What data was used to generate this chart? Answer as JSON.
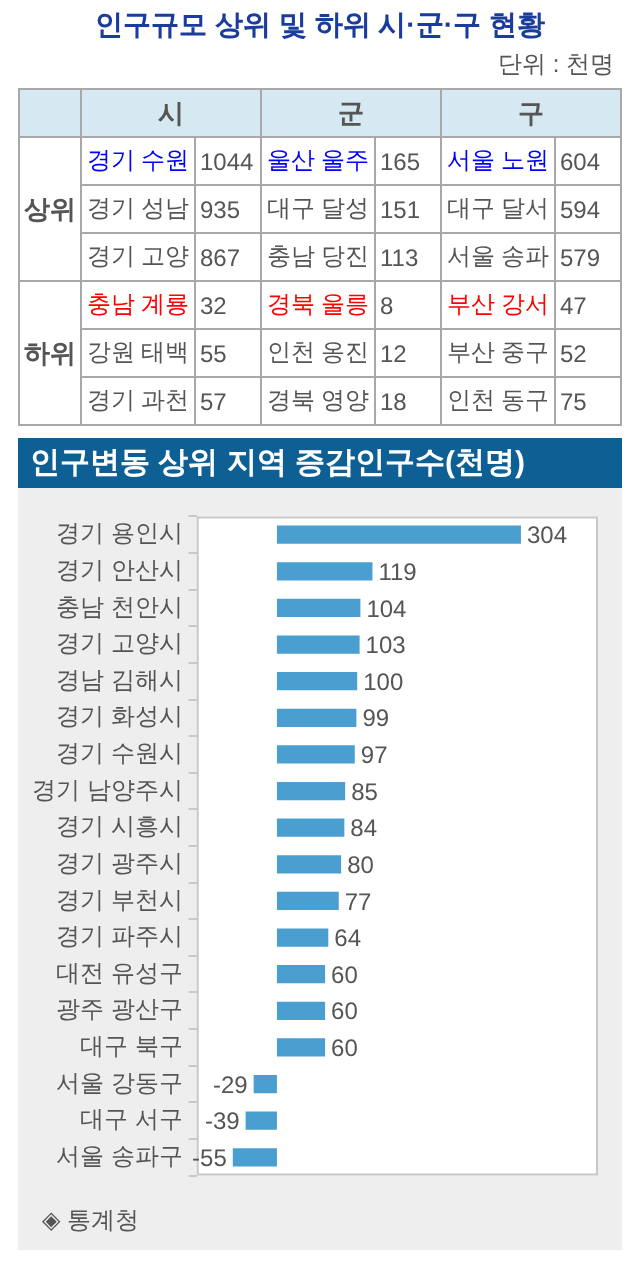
{
  "chart_data": [
    {
      "type": "other",
      "title": "인구규모 상위 및 하위 시·군·구 현황",
      "subtitle": "단위 : 천명",
      "annotations": [
        "시",
        "군",
        "구",
        "상위",
        "하위"
      ],
      "categories": [
        "경기 수원",
        "울산 울주",
        "서울 노원",
        "경기 성남",
        "대구 달성",
        "대구 달서",
        "경기 고양",
        "충남 당진",
        "서울 송파",
        "충남 계룡",
        "경북 울릉",
        "부산 강서",
        "강원 태백",
        "인천 옹진",
        "부산 중구",
        "경기 과천",
        "경북 영양",
        "인천 동구"
      ],
      "data_labels": true,
      "values": [
        1044,
        165,
        604,
        935,
        151,
        594,
        867,
        113,
        579,
        32,
        8,
        47,
        55,
        12,
        52,
        57,
        18,
        75
      ],
      "colors": [
        "#0000ff",
        "#0000ff",
        "#0000ff",
        "#555555",
        "#555555",
        "#555555",
        "#555555",
        "#555555",
        "#555555",
        "#ff0000",
        "#ff0000",
        "#ff0000",
        "#555555",
        "#555555",
        "#555555",
        "#555555",
        "#555555",
        "#555555"
      ]
    },
    {
      "type": "bar",
      "orientation": "horizontal",
      "title": "인구변동 상위 지역 증감인구수(천명)",
      "categories": [
        "경기 용인시",
        "경기 안산시",
        "충남 천안시",
        "경기 고양시",
        "경남 김해시",
        "경기 화성시",
        "경기 수원시",
        "경기 남양주시",
        "경기 시흥시",
        "경기 광주시",
        "경기 부천시",
        "경기 파주시",
        "대전 유성구",
        "광주 광산구",
        "대구 북구",
        "서울 강동구",
        "대구 서구",
        "서울 송파구"
      ],
      "values": [
        304,
        119,
        104,
        103,
        100,
        99,
        97,
        85,
        84,
        80,
        77,
        64,
        60,
        60,
        60,
        -29,
        -39,
        -55
      ],
      "color": "#4a9fd0",
      "data_labels": true,
      "tick_labels": "y",
      "grid": false,
      "legend": false,
      "annotations": [
        "◈ 통계청"
      ]
    }
  ]
}
